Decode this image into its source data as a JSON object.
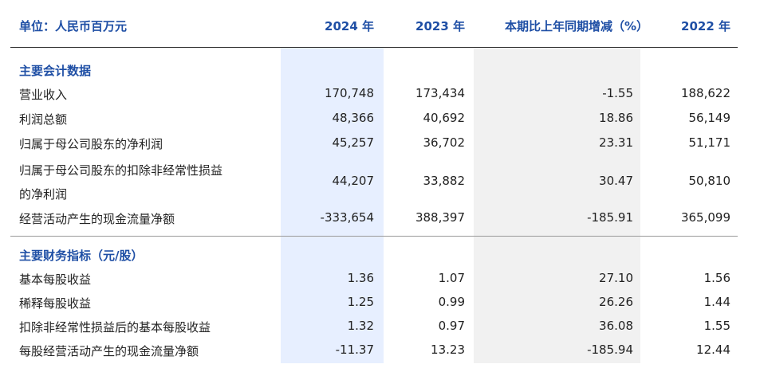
{
  "header": {
    "unit_label": "单位：人民币百万元",
    "col_2024": "2024 年",
    "col_2023": "2023 年",
    "col_change": "本期比上年同期增减（%）",
    "col_2022": "2022 年"
  },
  "section1": {
    "title": "主要会计数据",
    "rows": [
      {
        "label": "营业收入",
        "v2024": "170,748",
        "v2023": "173,434",
        "change": "-1.55",
        "v2022": "188,622"
      },
      {
        "label": "利润总额",
        "v2024": "48,366",
        "v2023": "40,692",
        "change": "18.86",
        "v2022": "56,149"
      },
      {
        "label": "归属于母公司股东的净利润",
        "v2024": "45,257",
        "v2023": "36,702",
        "change": "23.31",
        "v2022": "51,171"
      },
      {
        "label_line1": "归属于母公司股东的扣除非经常性损益",
        "label_line2": "的净利润",
        "v2024": "44,207",
        "v2023": "33,882",
        "change": "30.47",
        "v2022": "50,810"
      },
      {
        "label": "经营活动产生的现金流量净额",
        "v2024": "-333,654",
        "v2023": "388,397",
        "change": "-185.91",
        "v2022": "365,099"
      }
    ]
  },
  "section2": {
    "title": "主要财务指标（元/股）",
    "rows": [
      {
        "label": "基本每股收益",
        "v2024": "1.36",
        "v2023": "1.07",
        "change": "27.10",
        "v2022": "1.56"
      },
      {
        "label": "稀释每股收益",
        "v2024": "1.25",
        "v2023": "0.99",
        "change": "26.26",
        "v2022": "1.44"
      },
      {
        "label": "扣除非经常性损益后的基本每股收益",
        "v2024": "1.32",
        "v2023": "0.97",
        "change": "36.08",
        "v2022": "1.55"
      },
      {
        "label": "每股经营活动产生的现金流量净额",
        "v2024": "-11.37",
        "v2023": "13.23",
        "change": "-185.94",
        "v2022": "12.44"
      }
    ]
  }
}
